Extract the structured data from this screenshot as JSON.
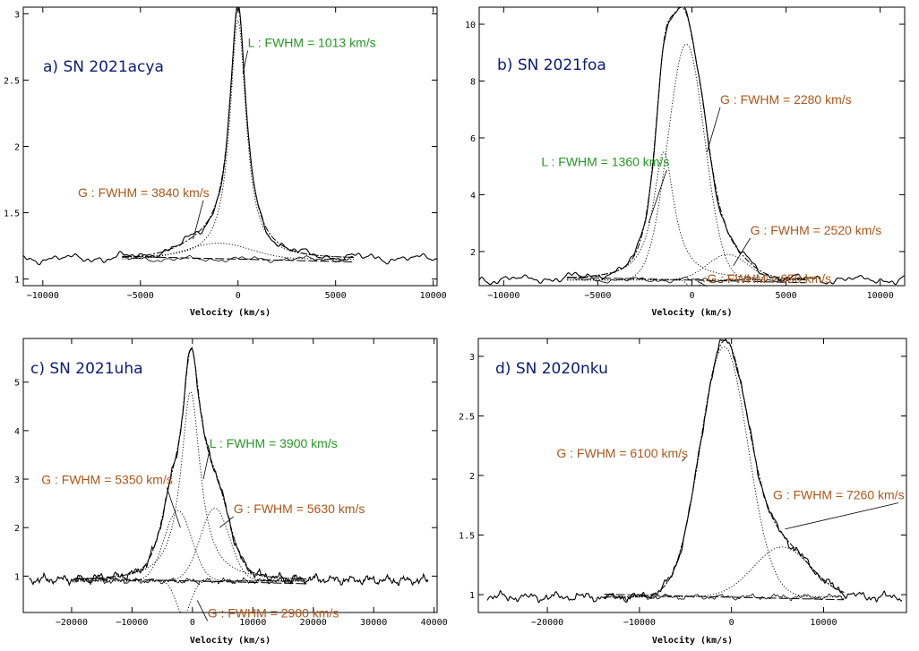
{
  "colors": {
    "title": "#0a1a7a",
    "lorentz": "#229922",
    "gauss": "#b05518",
    "line": "#000000"
  },
  "chart_data": [
    {
      "type": "line",
      "title": "a) SN 2021acya",
      "xlabel": "Velocity (km/s)",
      "xlim": [
        -11000,
        10200
      ],
      "ylim": [
        0.95,
        3.05
      ],
      "xticks": [
        -10000,
        -5000,
        0,
        5000,
        10000
      ],
      "yticks": [
        1,
        1.5,
        2,
        2.5,
        3
      ],
      "ytick_labels": [
        "1",
        "1.5",
        "2",
        "2.5",
        "3"
      ],
      "baseline": 1.15,
      "components": [
        {
          "profile": "lorentz",
          "center": 0,
          "fwhm": 1013,
          "amp": 1.8,
          "label": "L : FWHM = 1013 km/s",
          "style": "green"
        },
        {
          "profile": "gauss",
          "center": -1000,
          "fwhm": 3840,
          "amp": 0.12,
          "label": "G : FWHM = 3840 km/s",
          "style": "brown"
        }
      ],
      "data_range": [
        -11000,
        10200
      ],
      "annotations": [
        {
          "text": "L : FWHM = 1013 km/s",
          "style": "green",
          "at": [
            500,
            2.75
          ],
          "to": [
            250,
            2.55
          ]
        },
        {
          "text": "G : FWHM = 3840 km/s",
          "style": "brown",
          "at": [
            -8200,
            1.62
          ],
          "to": [
            -2300,
            1.3
          ]
        }
      ]
    },
    {
      "type": "line",
      "title": "b) SN 2021foa",
      "xlabel": "Velocity (km/s)",
      "xlim": [
        -11300,
        11300
      ],
      "ylim": [
        0.8,
        10.6
      ],
      "xticks": [
        -10000,
        -5000,
        0,
        5000,
        10000
      ],
      "yticks": [
        2,
        4,
        6,
        8,
        10
      ],
      "ytick_labels": [
        "2",
        "4",
        "6",
        "8",
        "10"
      ],
      "baseline": 1.0,
      "components": [
        {
          "profile": "gauss",
          "center": -300,
          "fwhm": 2280,
          "amp": 8.3,
          "label": "G : FWHM = 2280 km/s",
          "style": "brown"
        },
        {
          "profile": "lorentz",
          "center": -1500,
          "fwhm": 1360,
          "amp": 4.5,
          "label": "L : FWHM = 1360 km/s",
          "style": "green"
        },
        {
          "profile": "gauss",
          "center": 1900,
          "fwhm": 2520,
          "amp": 0.9,
          "label": "G : FWHM = 2520 km/s",
          "style": "brown"
        },
        {
          "profile": "gauss",
          "center": 100,
          "fwhm": 650,
          "amp": -0.35,
          "label": "G : FWHM = 650 km/s",
          "style": "brown"
        }
      ],
      "data_range": [
        -11300,
        11300
      ],
      "annotations": [
        {
          "text": "G : FWHM = 2280 km/s",
          "style": "brown",
          "at": [
            1500,
            7.2
          ],
          "to": [
            800,
            5.5
          ]
        },
        {
          "text": "L : FWHM = 1360 km/s",
          "style": "green",
          "at": [
            -8000,
            5.0
          ],
          "to": [
            -2300,
            3.0
          ]
        },
        {
          "text": "G : FWHM = 2520 km/s",
          "style": "brown",
          "at": [
            3100,
            2.6
          ],
          "to": [
            2200,
            1.5
          ]
        },
        {
          "text": "G : FWHM = 650 km/s",
          "style": "brown",
          "at": [
            800,
            0.9
          ],
          "to": [
            300,
            0.95
          ]
        }
      ]
    },
    {
      "type": "line",
      "title": "c) SN 2021uha",
      "xlabel": "Velocity (km/s)",
      "xlim": [
        -28000,
        40500
      ],
      "ylim": [
        0.25,
        5.9
      ],
      "xticks": [
        -20000,
        -10000,
        0,
        10000,
        20000,
        30000,
        40000
      ],
      "yticks": [
        1,
        2,
        3,
        4,
        5
      ],
      "ytick_labels": [
        "1",
        "2",
        "3",
        "4",
        "5"
      ],
      "baseline": 0.9,
      "components": [
        {
          "profile": "lorentz",
          "center": -300,
          "fwhm": 3900,
          "amp": 3.9,
          "label": "L : FWHM = 3900 km/s",
          "style": "green"
        },
        {
          "profile": "gauss",
          "center": -2400,
          "fwhm": 5350,
          "amp": 1.45,
          "label": "G : FWHM = 5350 km/s",
          "style": "brown"
        },
        {
          "profile": "gauss",
          "center": 3700,
          "fwhm": 5630,
          "amp": 1.5,
          "label": "G : FWHM = 5630 km/s",
          "style": "brown"
        },
        {
          "profile": "gauss",
          "center": -1500,
          "fwhm": 2900,
          "amp": -0.7,
          "label": "G : FWHM = 2900 km/s",
          "style": "brown"
        }
      ],
      "data_range": [
        -27000,
        39000
      ],
      "annotations": [
        {
          "text": "L : FWHM = 3900 km/s",
          "style": "green",
          "at": [
            2800,
            3.65
          ],
          "to": [
            1800,
            3.0
          ]
        },
        {
          "text": "G : FWHM = 5350 km/s",
          "style": "brown",
          "at": [
            -25000,
            2.9
          ],
          "to": [
            -2000,
            2.0
          ]
        },
        {
          "text": "G : FWHM = 5630 km/s",
          "style": "brown",
          "at": [
            6800,
            2.3
          ],
          "to": [
            4500,
            2.0
          ]
        },
        {
          "text": "G : FWHM = 2900 km/s",
          "style": "brown",
          "at": [
            2500,
            0.15
          ],
          "to": [
            800,
            0.5
          ]
        }
      ]
    },
    {
      "type": "line",
      "title": "d) SN 2020nku",
      "xlabel": "Velocity (km/s)",
      "xlim": [
        -27500,
        19000
      ],
      "ylim": [
        0.85,
        3.15
      ],
      "xticks": [
        -20000,
        -10000,
        0,
        10000
      ],
      "yticks": [
        1,
        1.5,
        2,
        2.5,
        3
      ],
      "ytick_labels": [
        "1",
        "1.5",
        "2",
        "2.5",
        "3"
      ],
      "baseline": 0.98,
      "components": [
        {
          "profile": "gauss",
          "center": -800,
          "fwhm": 6100,
          "amp": 2.1,
          "label": "G : FWHM = 6100 km/s",
          "style": "brown"
        },
        {
          "profile": "gauss",
          "center": 5500,
          "fwhm": 7260,
          "amp": 0.42,
          "label": "G : FWHM = 7260 km/s",
          "style": "brown"
        }
      ],
      "data_range": [
        -26500,
        18500
      ],
      "annotations": [
        {
          "text": "G : FWHM = 6100 km/s",
          "style": "brown",
          "at": [
            -19000,
            2.15
          ],
          "to": [
            -5000,
            2.15
          ]
        },
        {
          "text": "G : FWHM = 7260 km/s",
          "style": "brown",
          "at": [
            4500,
            1.8
          ],
          "to": [
            5800,
            1.55
          ]
        }
      ]
    }
  ]
}
